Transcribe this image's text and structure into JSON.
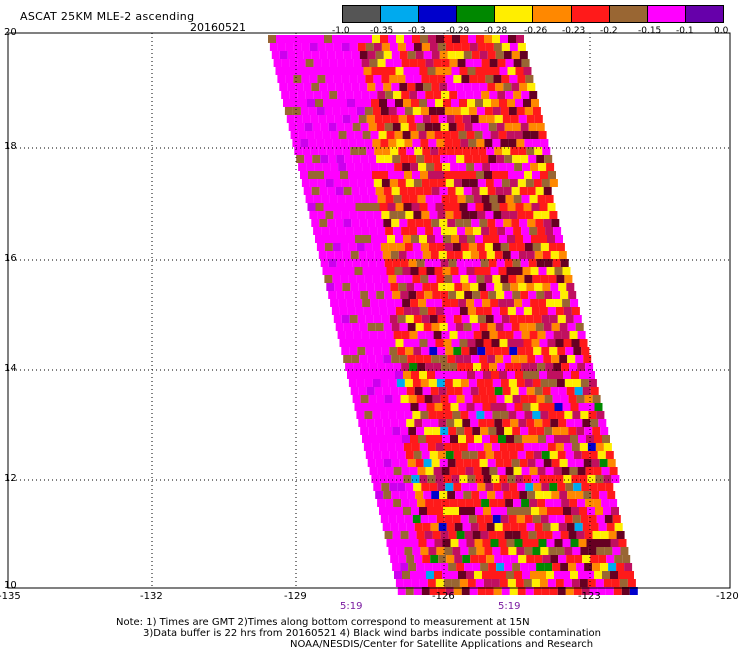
{
  "header": {
    "title": "ASCAT 25KM MLE-2 ascending",
    "date": "20160521"
  },
  "colorbar": {
    "labels": [
      "-1.0",
      "-0.35",
      "-0.3",
      "-0.29",
      "-0.28",
      "-0.26",
      "-0.23",
      "-0.2",
      "-0.15",
      "-0.1",
      "0.0"
    ],
    "colors": [
      "#555555",
      "#00aaee",
      "#0000cc",
      "#008800",
      "#ffee00",
      "#ff8800",
      "#ff1a1a",
      "#996633",
      "#ff00ff",
      "#6600aa"
    ]
  },
  "map": {
    "lat_labels": [
      "20",
      "18",
      "16",
      "14",
      "12",
      "10"
    ],
    "lon_labels": [
      "-135",
      "-132",
      "-129",
      "-126",
      "-123",
      "-120"
    ],
    "time_labels": [
      "5:19",
      "5:19"
    ],
    "swath_colors": [
      "#ff00ff",
      "#ff00ff",
      "#ff1a1a",
      "#ff1a1a",
      "#ff1a1a",
      "#ff8800",
      "#ffee00",
      "#660022",
      "#996633",
      "#c01060"
    ]
  },
  "notes": {
    "line1": "Note: 1) Times are GMT 2)Times along bottom correspond to measurement at 15N",
    "line2": "3)Data buffer is 22 hrs from 20160521 4) Black wind barbs indicate possible contamination",
    "line3": "NOAA/NESDIS/Center for Satellite Applications and Research"
  }
}
